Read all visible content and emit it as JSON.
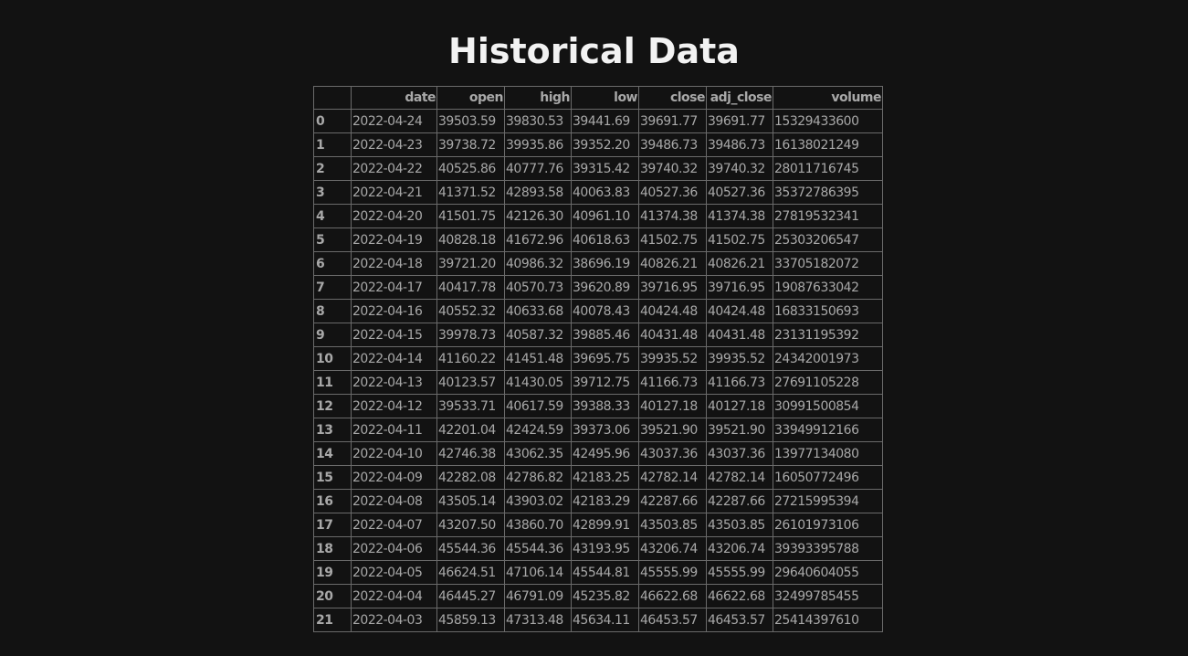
{
  "page": {
    "title": "Historical Data"
  },
  "table": {
    "columns": [
      "",
      "date",
      "open",
      "high",
      "low",
      "close",
      "adj_close",
      "volume"
    ],
    "rows": [
      [
        "0",
        "2022-04-24",
        "39503.59",
        "39830.53",
        "39441.69",
        "39691.77",
        "39691.77",
        "15329433600"
      ],
      [
        "1",
        "2022-04-23",
        "39738.72",
        "39935.86",
        "39352.20",
        "39486.73",
        "39486.73",
        "16138021249"
      ],
      [
        "2",
        "2022-04-22",
        "40525.86",
        "40777.76",
        "39315.42",
        "39740.32",
        "39740.32",
        "28011716745"
      ],
      [
        "3",
        "2022-04-21",
        "41371.52",
        "42893.58",
        "40063.83",
        "40527.36",
        "40527.36",
        "35372786395"
      ],
      [
        "4",
        "2022-04-20",
        "41501.75",
        "42126.30",
        "40961.10",
        "41374.38",
        "41374.38",
        "27819532341"
      ],
      [
        "5",
        "2022-04-19",
        "40828.18",
        "41672.96",
        "40618.63",
        "41502.75",
        "41502.75",
        "25303206547"
      ],
      [
        "6",
        "2022-04-18",
        "39721.20",
        "40986.32",
        "38696.19",
        "40826.21",
        "40826.21",
        "33705182072"
      ],
      [
        "7",
        "2022-04-17",
        "40417.78",
        "40570.73",
        "39620.89",
        "39716.95",
        "39716.95",
        "19087633042"
      ],
      [
        "8",
        "2022-04-16",
        "40552.32",
        "40633.68",
        "40078.43",
        "40424.48",
        "40424.48",
        "16833150693"
      ],
      [
        "9",
        "2022-04-15",
        "39978.73",
        "40587.32",
        "39885.46",
        "40431.48",
        "40431.48",
        "23131195392"
      ],
      [
        "10",
        "2022-04-14",
        "41160.22",
        "41451.48",
        "39695.75",
        "39935.52",
        "39935.52",
        "24342001973"
      ],
      [
        "11",
        "2022-04-13",
        "40123.57",
        "41430.05",
        "39712.75",
        "41166.73",
        "41166.73",
        "27691105228"
      ],
      [
        "12",
        "2022-04-12",
        "39533.71",
        "40617.59",
        "39388.33",
        "40127.18",
        "40127.18",
        "30991500854"
      ],
      [
        "13",
        "2022-04-11",
        "42201.04",
        "42424.59",
        "39373.06",
        "39521.90",
        "39521.90",
        "33949912166"
      ],
      [
        "14",
        "2022-04-10",
        "42746.38",
        "43062.35",
        "42495.96",
        "43037.36",
        "43037.36",
        "13977134080"
      ],
      [
        "15",
        "2022-04-09",
        "42282.08",
        "42786.82",
        "42183.25",
        "42782.14",
        "42782.14",
        "16050772496"
      ],
      [
        "16",
        "2022-04-08",
        "43505.14",
        "43903.02",
        "42183.29",
        "42287.66",
        "42287.66",
        "27215995394"
      ],
      [
        "17",
        "2022-04-07",
        "43207.50",
        "43860.70",
        "42899.91",
        "43503.85",
        "43503.85",
        "26101973106"
      ],
      [
        "18",
        "2022-04-06",
        "45544.36",
        "45544.36",
        "43193.95",
        "43206.74",
        "43206.74",
        "39393395788"
      ],
      [
        "19",
        "2022-04-05",
        "46624.51",
        "47106.14",
        "45544.81",
        "45555.99",
        "45555.99",
        "29640604055"
      ],
      [
        "20",
        "2022-04-04",
        "46445.27",
        "46791.09",
        "45235.82",
        "46622.68",
        "46622.68",
        "32499785455"
      ],
      [
        "21",
        "2022-04-03",
        "45859.13",
        "47313.48",
        "45634.11",
        "46453.57",
        "46453.57",
        "25414397610"
      ]
    ]
  }
}
